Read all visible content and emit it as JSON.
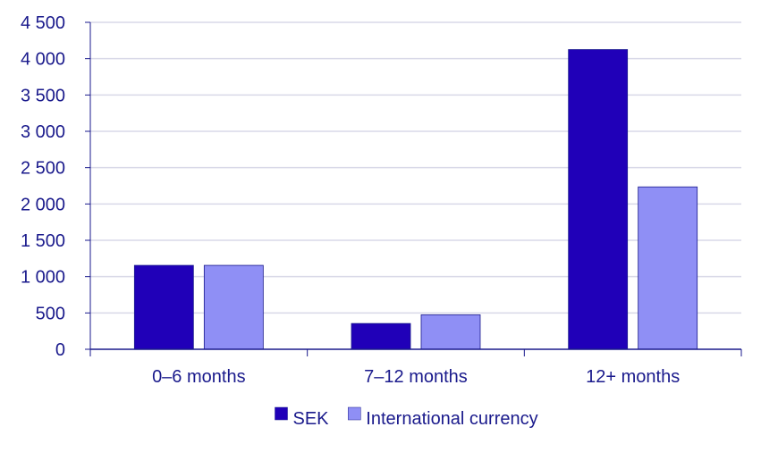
{
  "chart_data": {
    "type": "bar",
    "title": "",
    "xlabel": "",
    "ylabel": "",
    "categories": [
      "0–6 months",
      "7–12 months",
      "12+ months"
    ],
    "series": [
      {
        "name": "SEK",
        "values": [
          1155,
          355,
          4125
        ],
        "color": "#2000b8"
      },
      {
        "name": "International currency",
        "values": [
          1155,
          475,
          2235
        ],
        "color": "#8f8ff5"
      }
    ],
    "ylim": [
      0,
      4500
    ],
    "yticks": [
      0,
      500,
      1000,
      1500,
      2000,
      2500,
      3000,
      3500,
      4000,
      4500
    ],
    "ytick_labels": [
      "0",
      "500",
      "1 000",
      "1 500",
      "2 000",
      "2 500",
      "3 000",
      "3 500",
      "4 000",
      "4 500"
    ],
    "grid": true,
    "legend_position": "bottom-center",
    "colors": {
      "text": "#1a1a8c",
      "axis": "#1a1a8c",
      "grid": "#d9d9e8"
    }
  }
}
